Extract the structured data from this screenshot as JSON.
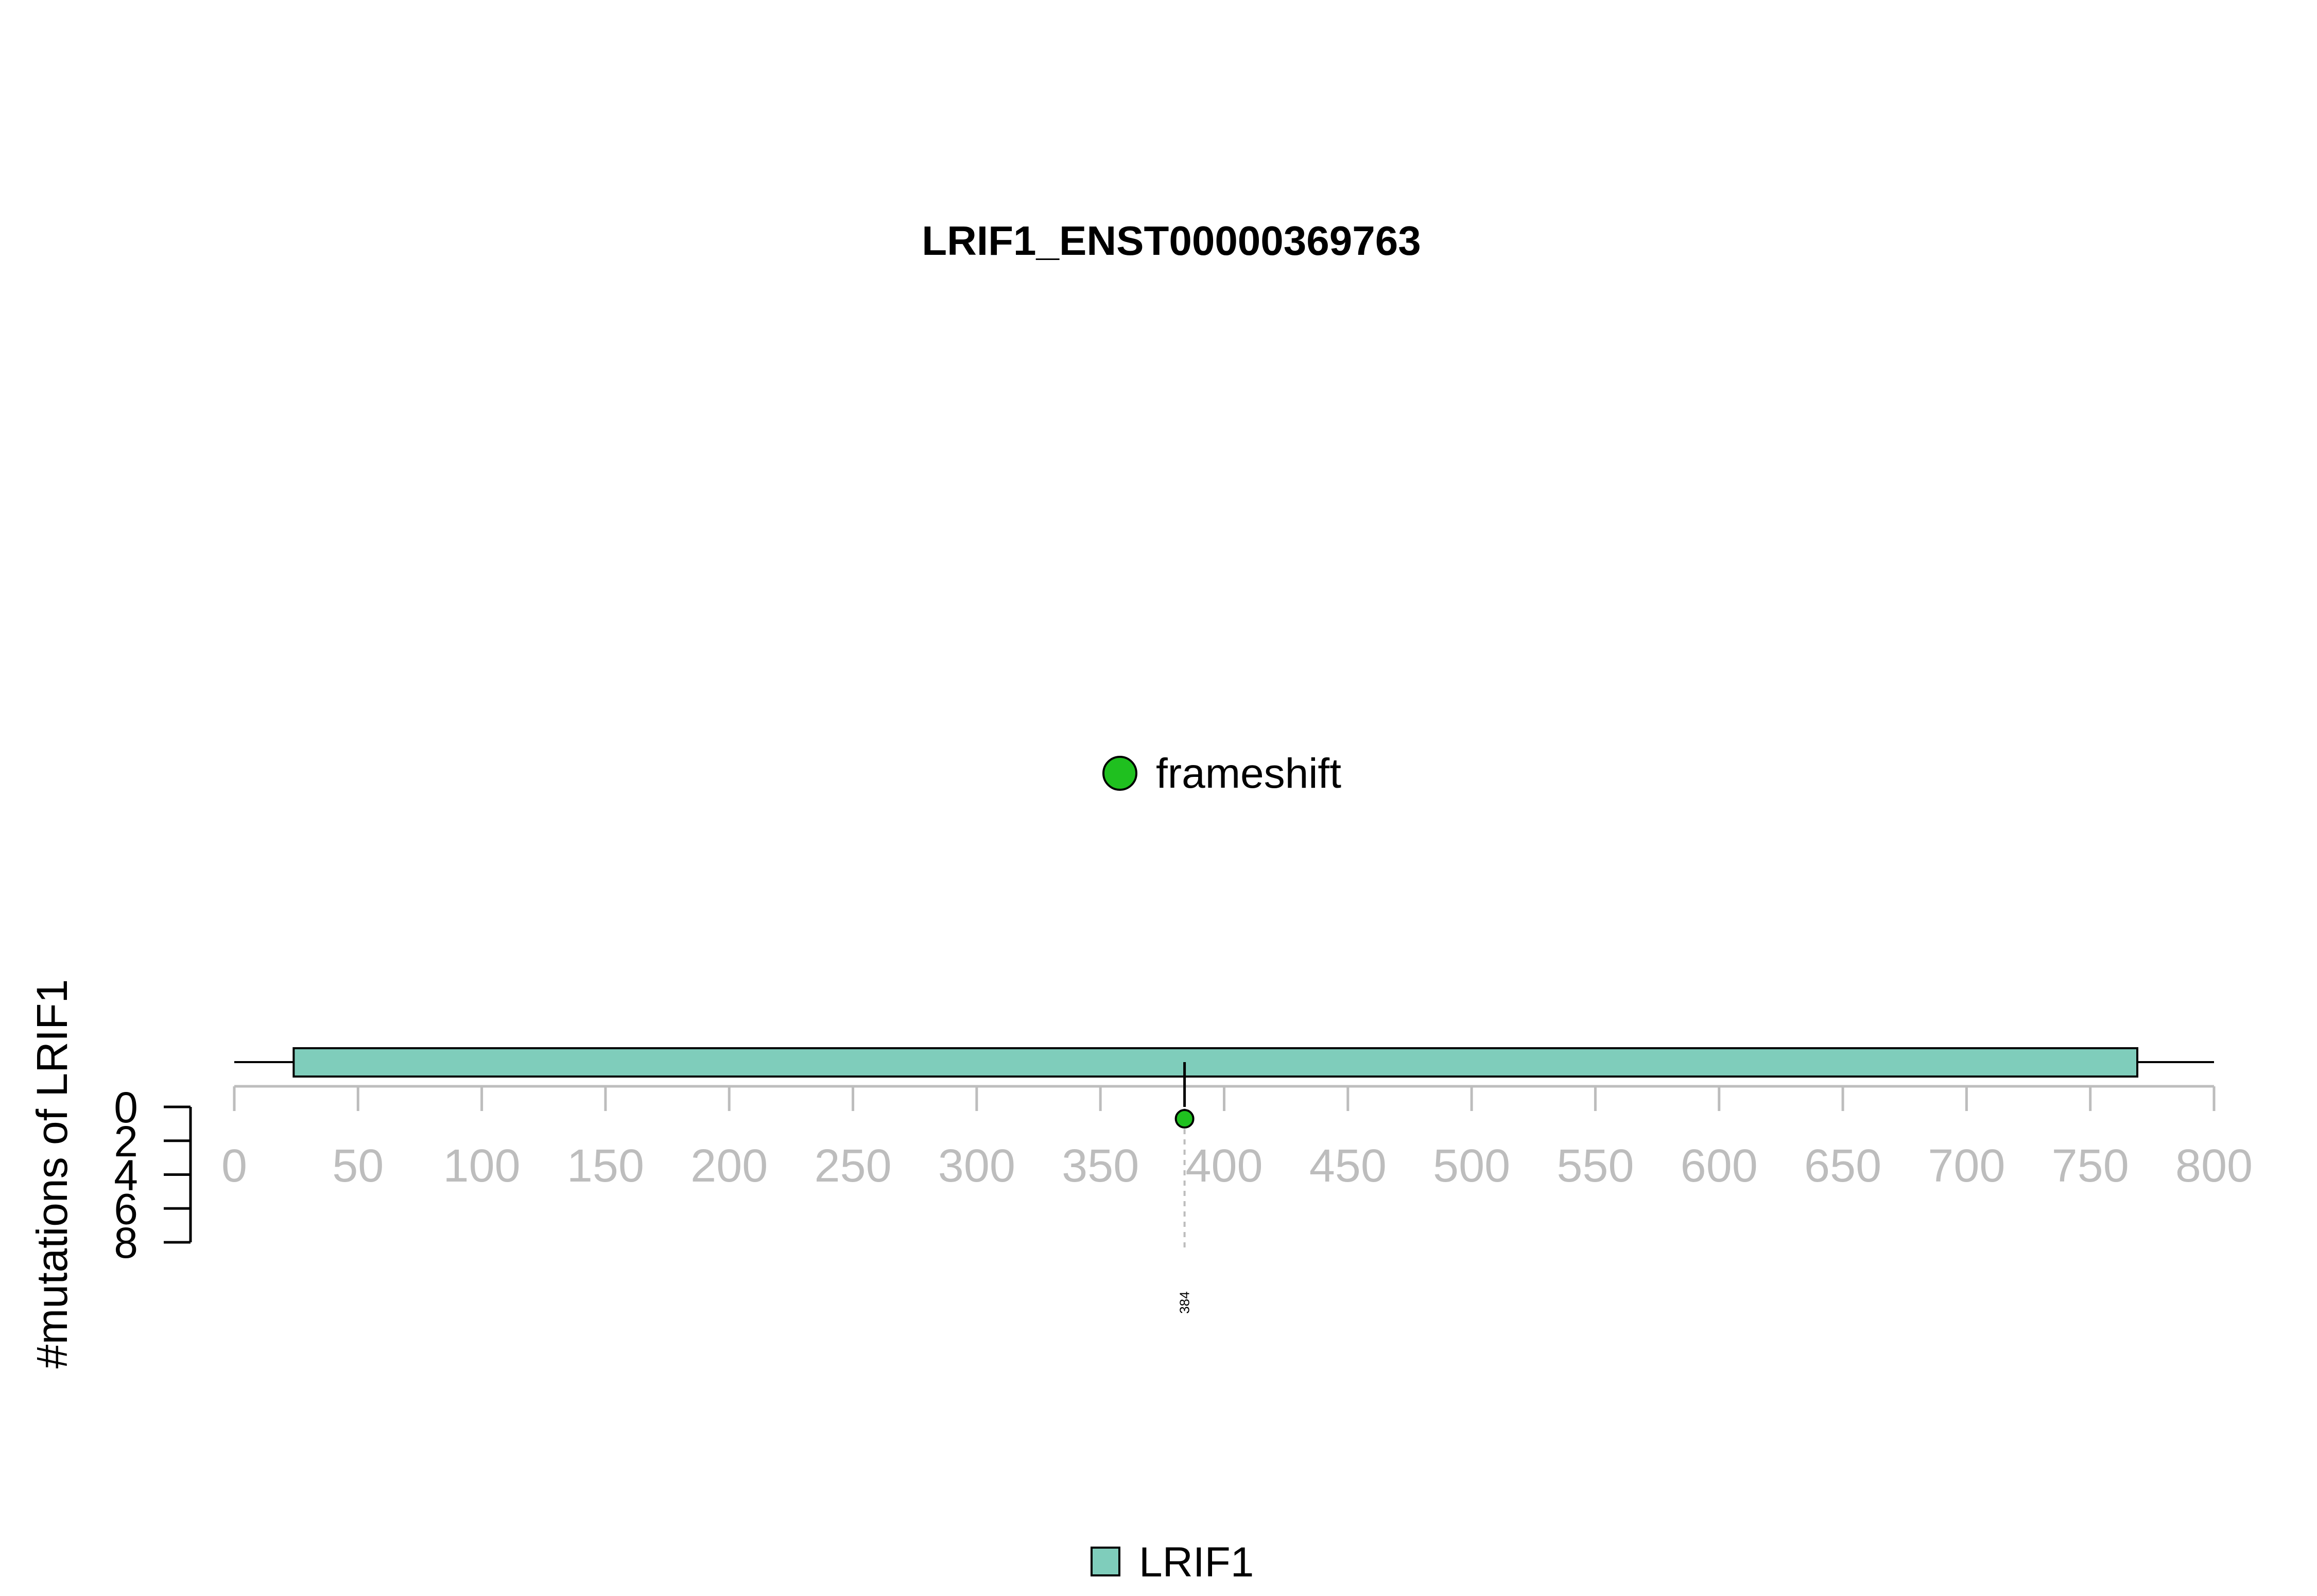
{
  "chart_data": {
    "type": "lollipop",
    "title": "LRIF1_ENST00000369763",
    "ylabel": "#mutations of LRIF1",
    "xlim": [
      0,
      800
    ],
    "x_ticks": [
      0,
      50,
      100,
      150,
      200,
      250,
      300,
      350,
      400,
      450,
      500,
      550,
      600,
      650,
      700,
      750,
      800
    ],
    "ylim": [
      0,
      8
    ],
    "y_ticks": [
      0,
      2,
      4,
      6,
      8
    ],
    "protein": {
      "start": 0,
      "end": 800
    },
    "domains": [
      {
        "name": "LRIF1",
        "start": 24,
        "end": 769,
        "color": "#7fcdbb"
      }
    ],
    "mutations": [
      {
        "position": 384,
        "count": 1,
        "type": "frameshift",
        "label": "384",
        "color": "#1fc01f"
      }
    ],
    "legend": {
      "mutation_types": [
        {
          "label": "frameshift",
          "color": "#1fc01f"
        }
      ],
      "domains": [
        {
          "label": "LRIF1",
          "color": "#7fcdbb"
        }
      ]
    }
  }
}
